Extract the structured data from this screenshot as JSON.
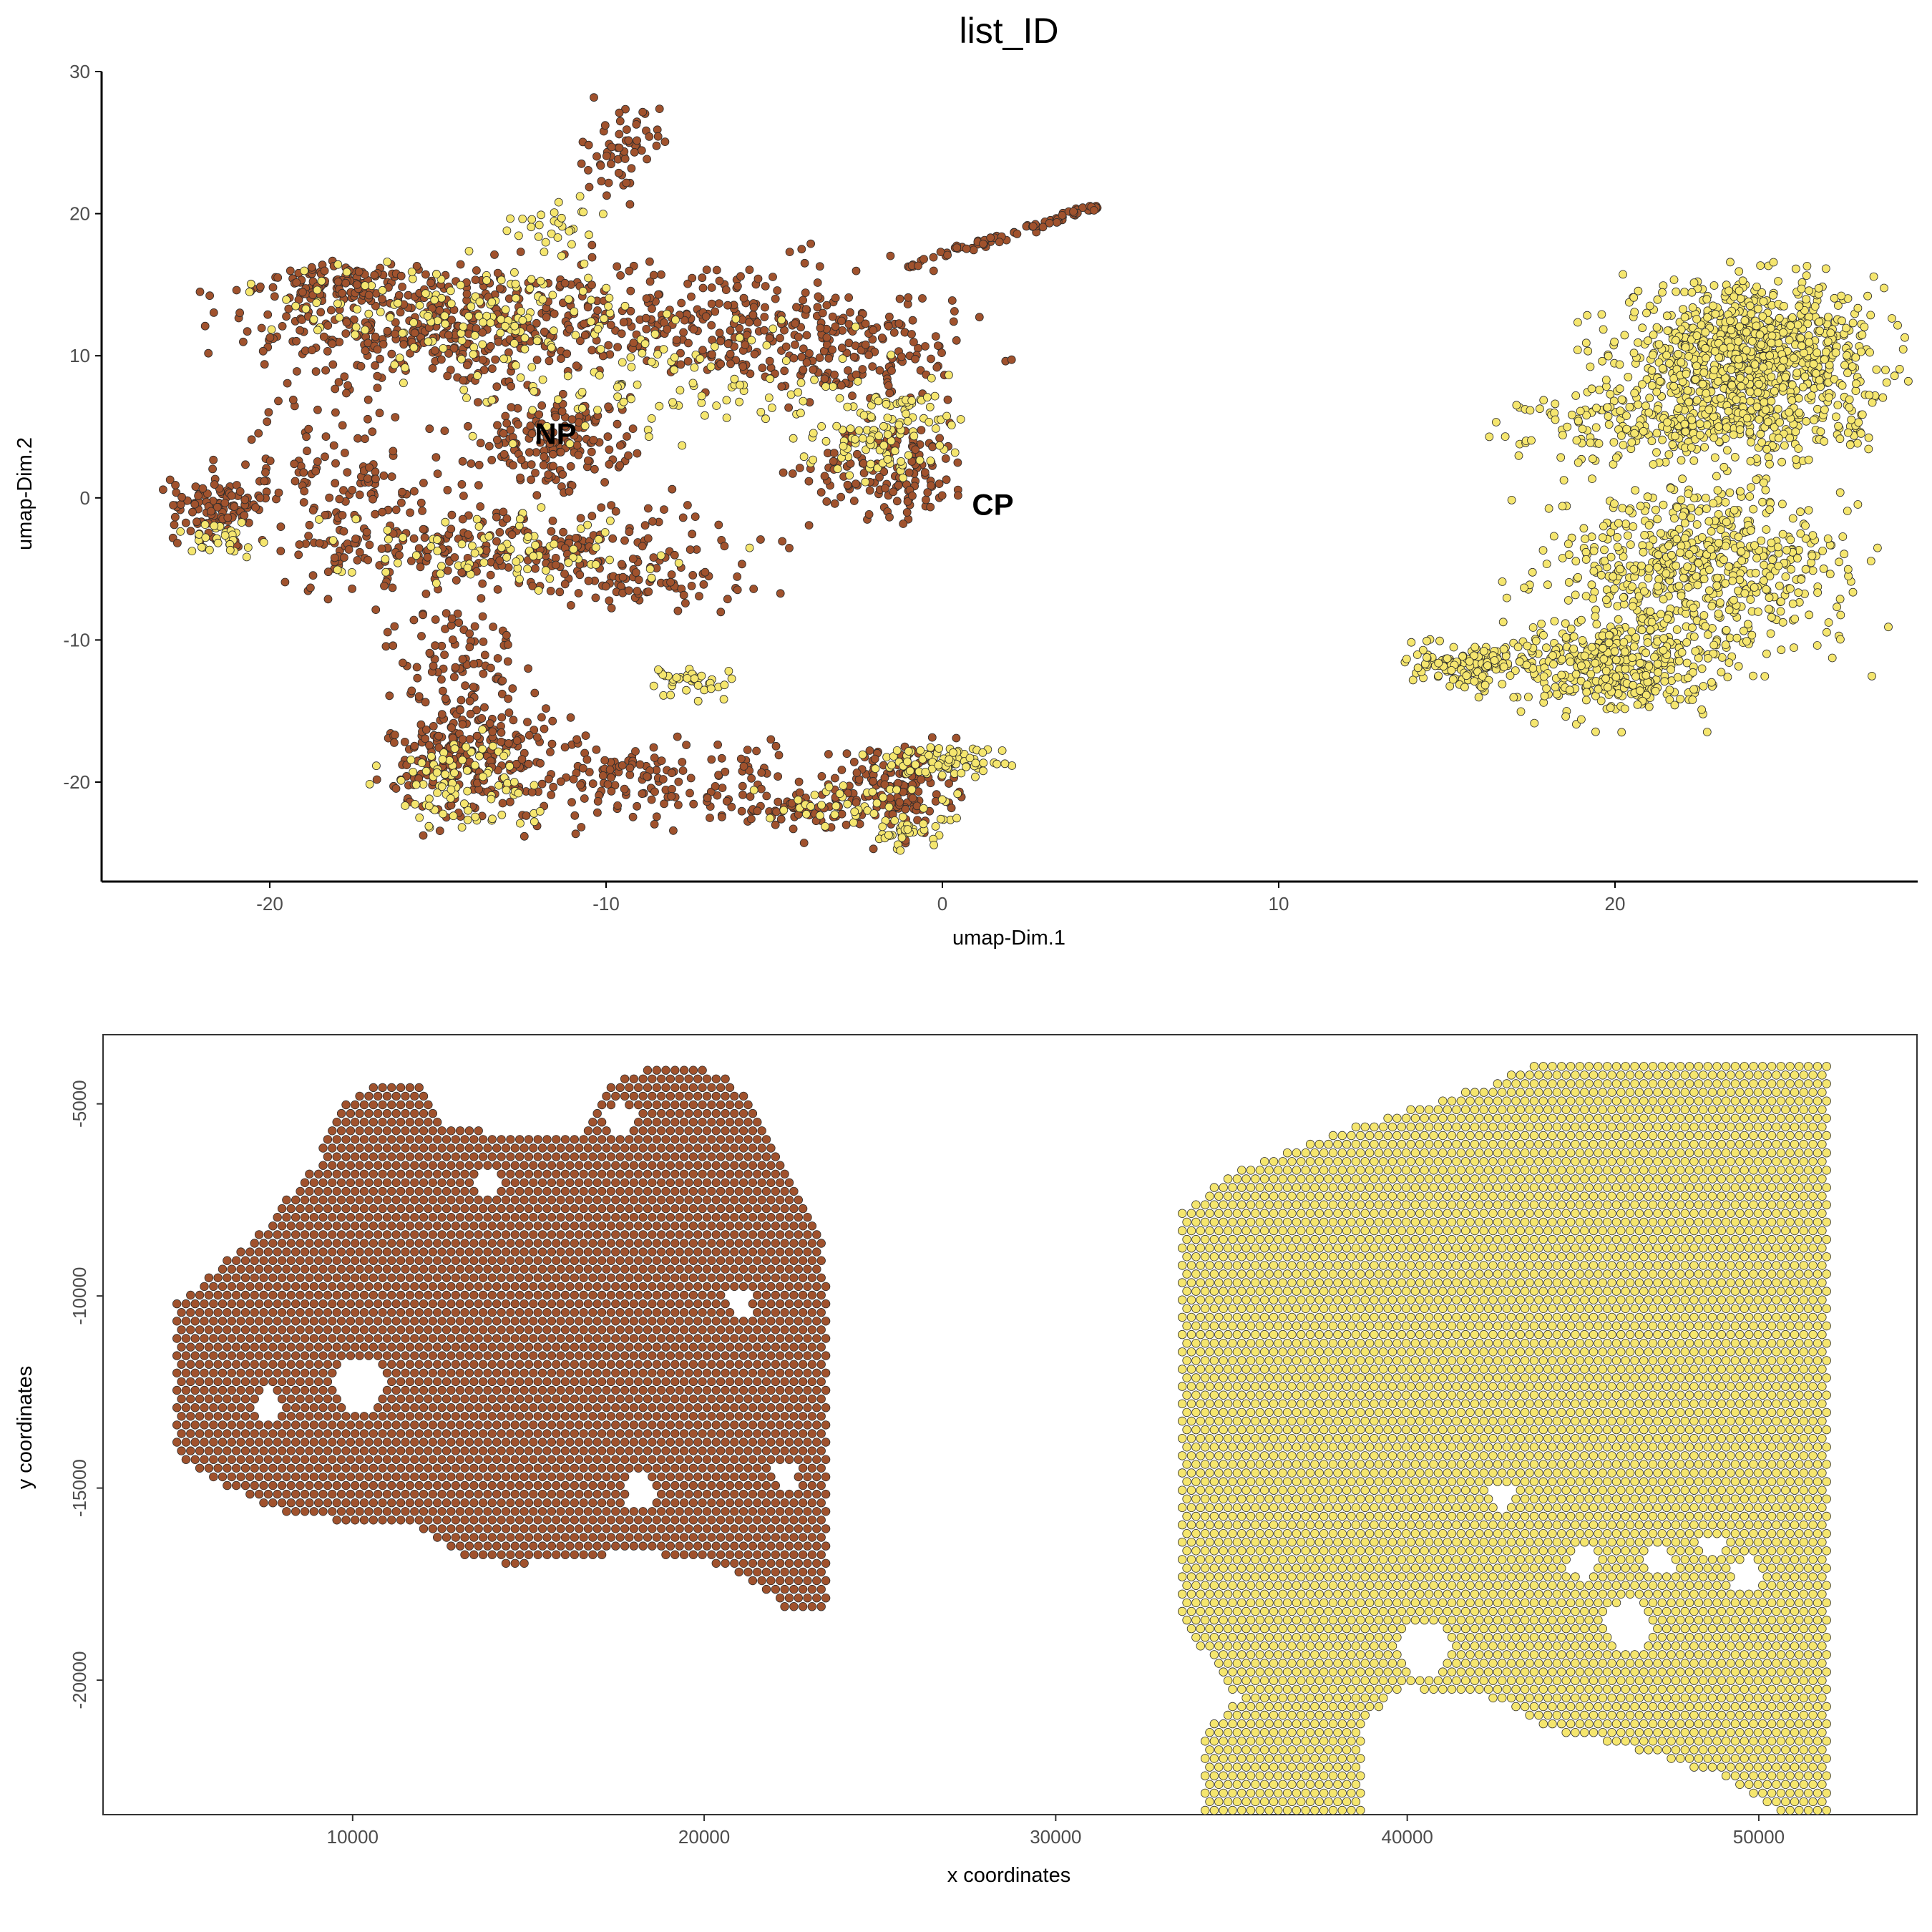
{
  "title": "list_ID",
  "colors": {
    "NP": "#a0522d",
    "CP": "#f5e66e",
    "outline": "#2b2b2b"
  },
  "chart_data": [
    {
      "type": "scatter",
      "panel": "umap",
      "xlabel": "umap-Dim.1",
      "ylabel": "umap-Dim.2",
      "xlim": [
        -25,
        29
      ],
      "ylim": [
        -27,
        30
      ],
      "xticks": [
        -20,
        -10,
        0,
        10,
        20
      ],
      "yticks": [
        -20,
        -10,
        0,
        10,
        20,
        30
      ],
      "grid": false,
      "legend": "none",
      "series": [
        {
          "name": "NP",
          "color": "#a0522d",
          "label_pos": [
            -11.5,
            4.5
          ],
          "regions": [
            {
              "cx": -15,
              "cy": 12,
              "rx": 5,
              "ry": 4,
              "n": 380
            },
            {
              "cx": -18,
              "cy": 15,
              "rx": 2,
              "ry": 1.2,
              "n": 110
            },
            {
              "cx": -11.5,
              "cy": 4,
              "rx": 2,
              "ry": 3,
              "n": 160
            },
            {
              "cx": -7,
              "cy": 12.5,
              "rx": 6,
              "ry": 4,
              "n": 260
            },
            {
              "cx": -3,
              "cy": 10,
              "rx": 4,
              "ry": 3,
              "n": 150
            },
            {
              "cx": -1.5,
              "cy": 2,
              "rx": 2.2,
              "ry": 3,
              "n": 140
            },
            {
              "cx": -21.5,
              "cy": -0.5,
              "rx": 1.3,
              "ry": 2,
              "n": 110
            },
            {
              "cx": -18,
              "cy": 1,
              "rx": 3,
              "ry": 5,
              "n": 120
            },
            {
              "cx": -13,
              "cy": -3.5,
              "rx": 6,
              "ry": 3,
              "n": 260
            },
            {
              "cx": -9,
              "cy": -6,
              "rx": 3,
              "ry": 1.5,
              "n": 60
            },
            {
              "cx": -14.5,
              "cy": -11,
              "rx": 1.8,
              "ry": 3,
              "n": 80
            },
            {
              "cx": -14,
              "cy": -18,
              "rx": 2.2,
              "ry": 4,
              "n": 240
            },
            {
              "cx": -10,
              "cy": -20,
              "rx": 2.5,
              "ry": 2.5,
              "n": 90
            },
            {
              "cx": -6,
              "cy": -20,
              "rx": 3,
              "ry": 3,
              "n": 80
            },
            {
              "cx": -1.5,
              "cy": -20.5,
              "rx": 1.6,
              "ry": 3,
              "n": 140
            },
            {
              "cx": -4,
              "cy": -22,
              "rx": 2.5,
              "ry": 1,
              "n": 50
            },
            {
              "cx": -9.5,
              "cy": 24.5,
              "rx": 1,
              "ry": 2.8,
              "n": 60
            }
          ],
          "arms": [
            {
              "from": [
                -2,
                15.5
              ],
              "to": [
                4.7,
                20.6
              ],
              "n": 80,
              "spread": 0.15
            }
          ]
        },
        {
          "name": "CP",
          "color": "#f5e66e",
          "label_pos": [
            1.5,
            -0.5
          ],
          "regions": [
            {
              "cx": 24,
              "cy": 10,
              "rx": 3.5,
              "ry": 4.5,
              "n": 900
            },
            {
              "cx": 22.5,
              "cy": 5,
              "rx": 4.5,
              "ry": 2.5,
              "n": 300
            },
            {
              "cx": 22.5,
              "cy": -5,
              "rx": 4,
              "ry": 5.5,
              "n": 650
            },
            {
              "cx": 20,
              "cy": -12,
              "rx": 2.5,
              "ry": 3,
              "n": 350
            },
            {
              "cx": 16,
              "cy": -11.5,
              "rx": 1.5,
              "ry": 1.2,
              "n": 120
            },
            {
              "cx": -14,
              "cy": 13,
              "rx": 5,
              "ry": 3.5,
              "n": 140
            },
            {
              "cx": -8,
              "cy": 8,
              "rx": 6,
              "ry": 4,
              "n": 120
            },
            {
              "cx": -2,
              "cy": 4.5,
              "rx": 2,
              "ry": 2.5,
              "n": 90
            },
            {
              "cx": -21.5,
              "cy": -3,
              "rx": 1,
              "ry": 1,
              "n": 30
            },
            {
              "cx": -13,
              "cy": -3.5,
              "rx": 5,
              "ry": 2.5,
              "n": 80
            },
            {
              "cx": -14.5,
              "cy": -20,
              "rx": 2,
              "ry": 3,
              "n": 90
            },
            {
              "cx": -7.5,
              "cy": -13,
              "rx": 1.2,
              "ry": 1.2,
              "n": 40
            },
            {
              "cx": 0,
              "cy": -18.5,
              "rx": 1.8,
              "ry": 1,
              "n": 80
            },
            {
              "cx": -1,
              "cy": -23.5,
              "rx": 1.2,
              "ry": 1,
              "n": 40
            },
            {
              "cx": -3,
              "cy": -21.5,
              "rx": 3,
              "ry": 1.5,
              "n": 40
            },
            {
              "cx": -11.5,
              "cy": 19,
              "rx": 1.5,
              "ry": 2,
              "n": 30
            },
            {
              "cx": -1,
              "cy": 6.8,
              "rx": 1,
              "ry": 0.4,
              "n": 20
            }
          ],
          "arms": [
            {
              "from": [
                14.2,
                -11.5
              ],
              "to": [
                16.5,
                -13.5
              ],
              "n": 40,
              "spread": 0.3
            }
          ]
        }
      ]
    },
    {
      "type": "scatter",
      "panel": "spatial",
      "xlabel": "x coordinates",
      "ylabel": "y coordinates",
      "xlim": [
        2900,
        54500
      ],
      "ylim": [
        -23500,
        -3200
      ],
      "xticks": [
        10000,
        20000,
        30000,
        40000,
        50000
      ],
      "yticks": [
        -20000,
        -15000,
        -10000,
        -5000
      ],
      "grid": false,
      "legend": "none",
      "series": [
        {
          "name": "NP",
          "color": "#a0522d",
          "spacing": 260,
          "outline": [
            [
              5000,
              -10200
            ],
            [
              5600,
              -9700
            ],
            [
              7300,
              -8400
            ],
            [
              9000,
              -6500
            ],
            [
              9600,
              -5100
            ],
            [
              10800,
              -4400
            ],
            [
              12200,
              -4600
            ],
            [
              12500,
              -5600
            ],
            [
              15800,
              -5900
            ],
            [
              16600,
              -5700
            ],
            [
              17300,
              -4500
            ],
            [
              18700,
              -3900
            ],
            [
              20500,
              -4200
            ],
            [
              21600,
              -5200
            ],
            [
              22500,
              -7200
            ],
            [
              23300,
              -8100
            ],
            [
              23500,
              -9800
            ],
            [
              23500,
              -18300
            ],
            [
              22500,
              -18300
            ],
            [
              21600,
              -17600
            ],
            [
              20500,
              -17000
            ],
            [
              18000,
              -16600
            ],
            [
              16000,
              -16900
            ],
            [
              14500,
              -17000
            ],
            [
              13000,
              -16700
            ],
            [
              11500,
              -15900
            ],
            [
              8500,
              -15800
            ],
            [
              7500,
              -15400
            ],
            [
              6000,
              -14800
            ],
            [
              5000,
              -14100
            ]
          ],
          "holes": [
            {
              "cx": 10200,
              "cy": -12300,
              "r": 700
            },
            {
              "cx": 7600,
              "cy": -12800,
              "r": 400
            },
            {
              "cx": 21000,
              "cy": -10200,
              "r": 350
            },
            {
              "cx": 18200,
              "cy": -15100,
              "r": 450
            },
            {
              "cx": 22300,
              "cy": -14700,
              "r": 350
            },
            {
              "cx": 13900,
              "cy": -7000,
              "r": 350
            },
            {
              "cx": 17600,
              "cy": -5400,
              "r": 450
            }
          ]
        },
        {
          "name": "CP",
          "color": "#f5e66e",
          "spacing": 260,
          "outline": [
            [
              33600,
              -7800
            ],
            [
              35000,
              -6800
            ],
            [
              37500,
              -5900
            ],
            [
              39500,
              -5300
            ],
            [
              42000,
              -4600
            ],
            [
              44000,
              -3800
            ],
            [
              52000,
              -3800
            ],
            [
              52000,
              -23400
            ],
            [
              50500,
              -23400
            ],
            [
              49000,
              -22500
            ],
            [
              46500,
              -21800
            ],
            [
              44000,
              -21300
            ],
            [
              42500,
              -20500
            ],
            [
              40000,
              -20200
            ],
            [
              38700,
              -21000
            ],
            [
              38700,
              -23400
            ],
            [
              34200,
              -23400
            ],
            [
              34200,
              -21400
            ],
            [
              35200,
              -20500
            ],
            [
              33600,
              -18500
            ]
          ],
          "holes": [
            {
              "cx": 40500,
              "cy": -19200,
              "r": 700
            },
            {
              "cx": 46300,
              "cy": -18600,
              "r": 650
            },
            {
              "cx": 45000,
              "cy": -16900,
              "r": 420
            },
            {
              "cx": 47200,
              "cy": -16900,
              "r": 400
            },
            {
              "cx": 49700,
              "cy": -17300,
              "r": 450
            },
            {
              "cx": 42700,
              "cy": -15200,
              "r": 350
            },
            {
              "cx": 48700,
              "cy": -16500,
              "r": 300
            }
          ]
        }
      ]
    }
  ]
}
